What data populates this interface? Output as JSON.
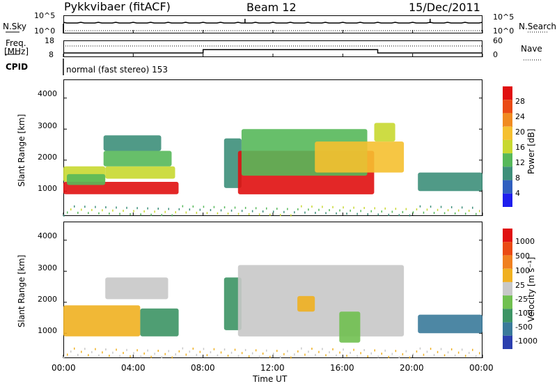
{
  "header": {
    "title": "Pykkvibaer (fitACF)",
    "beam": "Beam 12",
    "date": "15/Dec/2011"
  },
  "nsky_panel": {
    "left_label": "N.Sky",
    "right_label": "N.Search",
    "left_ticks": [
      "10^5",
      "10^0"
    ],
    "right_ticks": [
      "10^5",
      "10^0"
    ]
  },
  "freq_panel": {
    "left_label_line1": "Freq.",
    "left_label_line2": "[MHz]",
    "right_label": "Nave",
    "left_ticks": [
      "18",
      "8"
    ],
    "right_ticks": [
      "60",
      "0"
    ],
    "freq_steps": [
      {
        "t": 0,
        "v": 10.5
      },
      {
        "t": 8,
        "v": 10.5
      },
      {
        "t": 8,
        "v": 12.5
      },
      {
        "t": 18,
        "v": 12.5
      },
      {
        "t": 18,
        "v": 10.5
      },
      {
        "t": 24,
        "v": 10.5
      }
    ]
  },
  "cpid": {
    "label": "CPID",
    "text": "normal (fast stereo) 153"
  },
  "chart_data": [
    {
      "type": "heatmap",
      "name": "power",
      "ylabel": "Slant Range [km]",
      "ylim": [
        200,
        4600
      ],
      "xlim": [
        0,
        24
      ],
      "y_ticks": [
        "4000",
        "3000",
        "2000",
        "1000"
      ],
      "y_tick_values": [
        4000,
        3000,
        2000,
        1000
      ],
      "colorbar_label": "Power [dB]",
      "colorbar_ticks": [
        "28",
        "24",
        "20",
        "16",
        "12",
        "8",
        "4"
      ],
      "colorbar_colors": [
        "#1e1eee",
        "#2f5fbf",
        "#3d8f7a",
        "#56b85a",
        "#c8d830",
        "#f5c030",
        "#f08a20",
        "#ea4a14",
        "#e01010"
      ],
      "patches": [
        {
          "t0": 0,
          "t1": 6.6,
          "r0": 900,
          "r1": 1300,
          "level": 8
        },
        {
          "t0": 0,
          "t1": 2.4,
          "r0": 1300,
          "r1": 1800,
          "level": 4
        },
        {
          "t0": 2.4,
          "t1": 6.4,
          "r0": 1400,
          "r1": 1800,
          "level": 4
        },
        {
          "t0": 2.3,
          "t1": 6.2,
          "r0": 1800,
          "r1": 2300,
          "level": 3
        },
        {
          "t0": 2.3,
          "t1": 5.6,
          "r0": 2300,
          "r1": 2800,
          "level": 2
        },
        {
          "t0": 0.2,
          "t1": 2.4,
          "r0": 1200,
          "r1": 1550,
          "level": 3
        },
        {
          "t0": 9.2,
          "t1": 10.2,
          "r0": 1100,
          "r1": 2700,
          "level": 2
        },
        {
          "t0": 10.0,
          "t1": 17.8,
          "r0": 900,
          "r1": 2300,
          "level": 8
        },
        {
          "t0": 10.2,
          "t1": 17.4,
          "r0": 1500,
          "r1": 3000,
          "level": 3
        },
        {
          "t0": 14.4,
          "t1": 19.5,
          "r0": 1600,
          "r1": 2600,
          "level": 5
        },
        {
          "t0": 17.8,
          "t1": 19.0,
          "r0": 2600,
          "r1": 3200,
          "level": 4
        },
        {
          "t0": 20.3,
          "t1": 24.0,
          "r0": 1000,
          "r1": 1600,
          "level": 2
        }
      ]
    },
    {
      "type": "heatmap",
      "name": "velocity",
      "ylabel": "Slant Range [km]",
      "ylim": [
        200,
        4600
      ],
      "xlim": [
        0,
        24
      ],
      "y_ticks": [
        "4000",
        "3000",
        "2000",
        "1000"
      ],
      "y_tick_values": [
        4000,
        3000,
        2000,
        1000
      ],
      "colorbar_label": "Velocity [m s⁻¹]",
      "colorbar_ticks": [
        "1000",
        "500",
        "100",
        "25",
        "-25",
        "-100",
        "-500",
        "-1000"
      ],
      "colorbar_colors": [
        "#2b3fae",
        "#3a7a9a",
        "#3c9464",
        "#70c050",
        "#c8c8c8",
        "#f0b020",
        "#f08020",
        "#ea4a14",
        "#e01010"
      ],
      "patches": [
        {
          "t0": 0,
          "t1": 4.4,
          "r0": 900,
          "r1": 1900,
          "level": 5
        },
        {
          "t0": 4.4,
          "t1": 6.6,
          "r0": 900,
          "r1": 1800,
          "level": 2
        },
        {
          "t0": 2.4,
          "t1": 6.0,
          "r0": 2100,
          "r1": 2800,
          "level": 4
        },
        {
          "t0": 9.2,
          "t1": 10.2,
          "r0": 1100,
          "r1": 2800,
          "level": 2
        },
        {
          "t0": 10.0,
          "t1": 19.5,
          "r0": 900,
          "r1": 3200,
          "level": 4
        },
        {
          "t0": 15.8,
          "t1": 17.0,
          "r0": 700,
          "r1": 1700,
          "level": 3
        },
        {
          "t0": 13.4,
          "t1": 14.4,
          "r0": 1700,
          "r1": 2200,
          "level": 5
        },
        {
          "t0": 20.3,
          "t1": 24.0,
          "r0": 1000,
          "r1": 1600,
          "level": 1
        }
      ]
    }
  ],
  "x_axis": {
    "ticks": [
      "00:00",
      "04:00",
      "08:00",
      "12:00",
      "16:00",
      "20:00",
      "00:00"
    ],
    "tick_values": [
      0,
      4,
      8,
      12,
      16,
      20,
      24
    ],
    "label": "Time UT"
  }
}
